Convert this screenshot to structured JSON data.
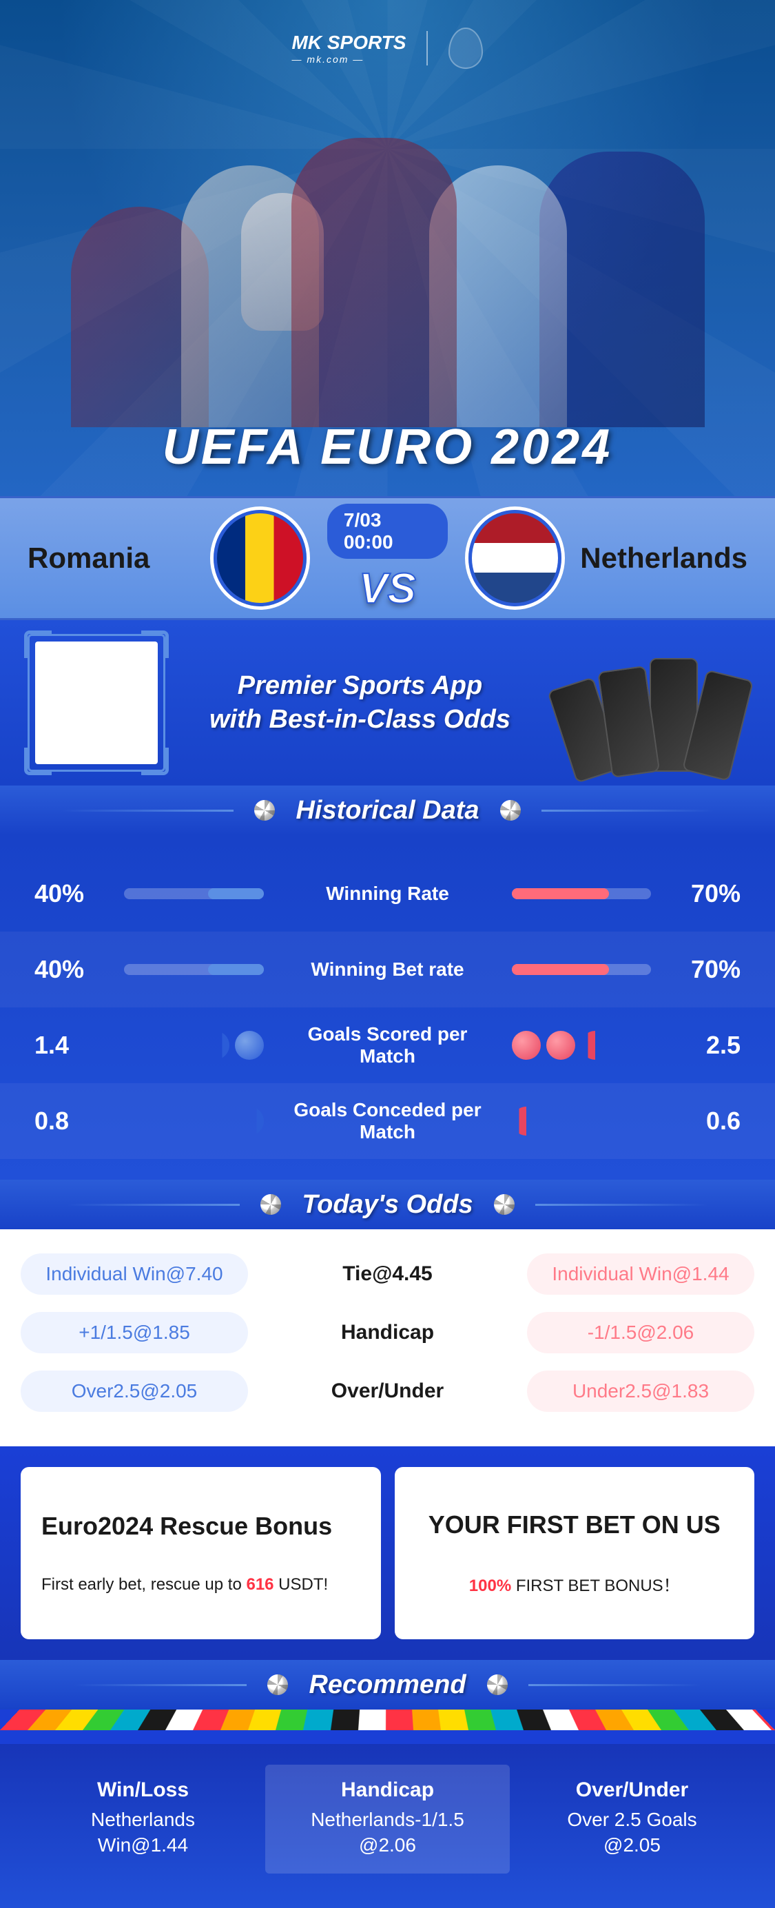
{
  "logo": {
    "brand": "MK SPORTS",
    "domain": "— mk.com —"
  },
  "hero": {
    "title": "UEFA EURO 2024"
  },
  "match": {
    "team_left": "Romania",
    "team_right": "Netherlands",
    "time": "7/03 00:00",
    "vs": "VS",
    "flag_left_colors": [
      "#002B7F",
      "#FCD116",
      "#CE1126"
    ],
    "flag_right_colors": [
      "#AE1C28",
      "#FFFFFF",
      "#21468B"
    ]
  },
  "promo": {
    "line1": "Premier Sports App",
    "line2": "with Best-in-Class Odds"
  },
  "sections": {
    "historical": "Historical Data",
    "odds": "Today's Odds",
    "recommend": "Recommend"
  },
  "historical": {
    "rows": [
      {
        "left_val": "40%",
        "label": "Winning Rate",
        "right_val": "70%",
        "type": "bar",
        "left_pct": 40,
        "right_pct": 70
      },
      {
        "left_val": "40%",
        "label": "Winning Bet rate",
        "right_val": "70%",
        "type": "bar",
        "left_pct": 40,
        "right_pct": 70
      },
      {
        "left_val": "1.4",
        "label": "Goals Scored per Match",
        "right_val": "2.5",
        "type": "balls",
        "left_balls": 1.4,
        "right_balls": 2.5
      },
      {
        "left_val": "0.8",
        "label": "Goals Conceded per Match",
        "right_val": "0.6",
        "type": "balls",
        "left_balls": 0.8,
        "right_balls": 0.6
      }
    ],
    "colors": {
      "left_bar": "#5b8fe4",
      "right_bar": "#ff6b7a",
      "bar_bg": "rgba(255,255,255,0.25)"
    }
  },
  "odds": {
    "rows": [
      {
        "left": "Individual Win@7.40",
        "center": "Tie@4.45",
        "right": "Individual Win@1.44"
      },
      {
        "left": "+1/1.5@1.85",
        "center": "Handicap",
        "right": "-1/1.5@2.06"
      },
      {
        "left": "Over2.5@2.05",
        "center": "Over/Under",
        "right": "Under2.5@1.83"
      }
    ],
    "colors": {
      "left_pill_bg": "#eef3ff",
      "left_pill_text": "#4a7be0",
      "right_pill_bg": "#fff0f2",
      "right_pill_text": "#ff7a88"
    }
  },
  "bonus": {
    "left": {
      "title": "Euro2024 Rescue Bonus",
      "sub_prefix": "First early bet, rescue up to ",
      "sub_highlight": "616",
      "sub_suffix": " USDT!"
    },
    "right": {
      "title": "YOUR FIRST BET ON US",
      "sub_highlight": "100%",
      "sub_suffix": " FIRST BET BONUS！"
    }
  },
  "recommend": {
    "cols": [
      {
        "head": "Win/Loss",
        "line1": "Netherlands",
        "line2": "Win@1.44"
      },
      {
        "head": "Handicap",
        "line1": "Netherlands-1/1.5",
        "line2": "@2.06"
      },
      {
        "head": "Over/Under",
        "line1": "Over 2.5 Goals",
        "line2": "@2.05"
      }
    ]
  },
  "colors": {
    "primary_blue": "#2150d8",
    "accent_blue": "#5b8fe4",
    "accent_red": "#ff6b7a",
    "bg_gradient_top": "#1a3fd6",
    "white": "#ffffff"
  }
}
